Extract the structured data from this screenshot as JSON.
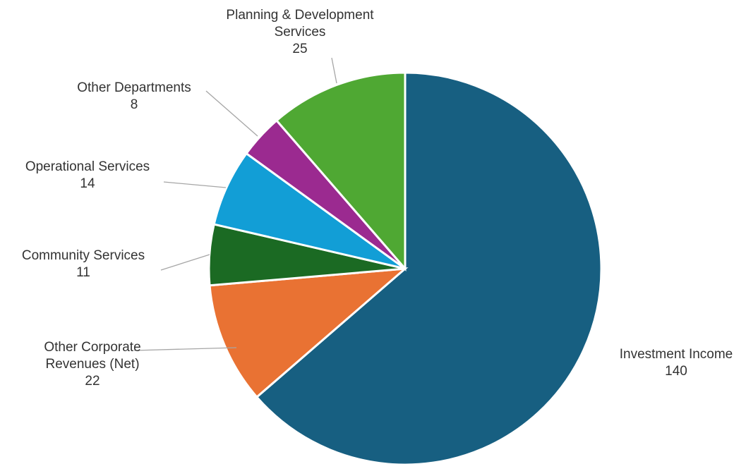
{
  "chart_data": {
    "type": "pie",
    "title": "",
    "slices": [
      {
        "label_lines": [
          "Investment Income"
        ],
        "value": 140,
        "value_text": "140",
        "color": "#175f81"
      },
      {
        "label_lines": [
          "Other Corporate",
          "Revenues (Net)"
        ],
        "value": 22,
        "value_text": "22",
        "color": "#e97233"
      },
      {
        "label_lines": [
          "Community Services"
        ],
        "value": 11,
        "value_text": "11",
        "color": "#1b6a23"
      },
      {
        "label_lines": [
          "Operational Services"
        ],
        "value": 14,
        "value_text": "14",
        "color": "#129ed6"
      },
      {
        "label_lines": [
          "Other Departments"
        ],
        "value": 8,
        "value_text": "8",
        "color": "#9b2a90"
      },
      {
        "label_lines": [
          "Planning & Development",
          "Services"
        ],
        "value": 25,
        "value_text": "25",
        "color": "#4fa833"
      }
    ],
    "start_angle_deg": 0,
    "direction": "clockwise",
    "legend": "none",
    "data_labels": "outside-with-leader-lines"
  }
}
